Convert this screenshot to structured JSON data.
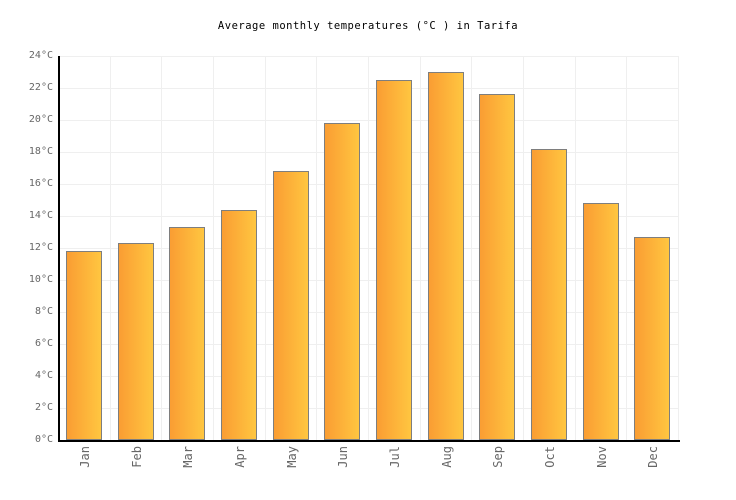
{
  "chart_data": {
    "type": "bar",
    "title": "Average monthly temperatures (°C ) in Tarifa",
    "categories": [
      "Jan",
      "Feb",
      "Mar",
      "Apr",
      "May",
      "Jun",
      "Jul",
      "Aug",
      "Sep",
      "Oct",
      "Nov",
      "Dec"
    ],
    "values": [
      11.8,
      12.3,
      13.3,
      14.4,
      16.8,
      19.8,
      22.5,
      23.0,
      21.6,
      18.2,
      14.8,
      12.7
    ],
    "series_name": "Average monthly temperature",
    "unit": "°C",
    "ylim": [
      0,
      24
    ],
    "ytick_step": 2,
    "ytick_suffix": "°C",
    "xlabel": "",
    "ylabel": "",
    "grid": "on",
    "legend": "none",
    "colors": {
      "background": "#ffffff",
      "title_text": "#000000",
      "tick_label_text": "#666666",
      "axis_line": "#000000",
      "grid_line": "#efefef",
      "bar_gradient_left": "#fa9d33",
      "bar_gradient_right": "#ffc640",
      "bar_border": "#7e7e7e"
    }
  }
}
